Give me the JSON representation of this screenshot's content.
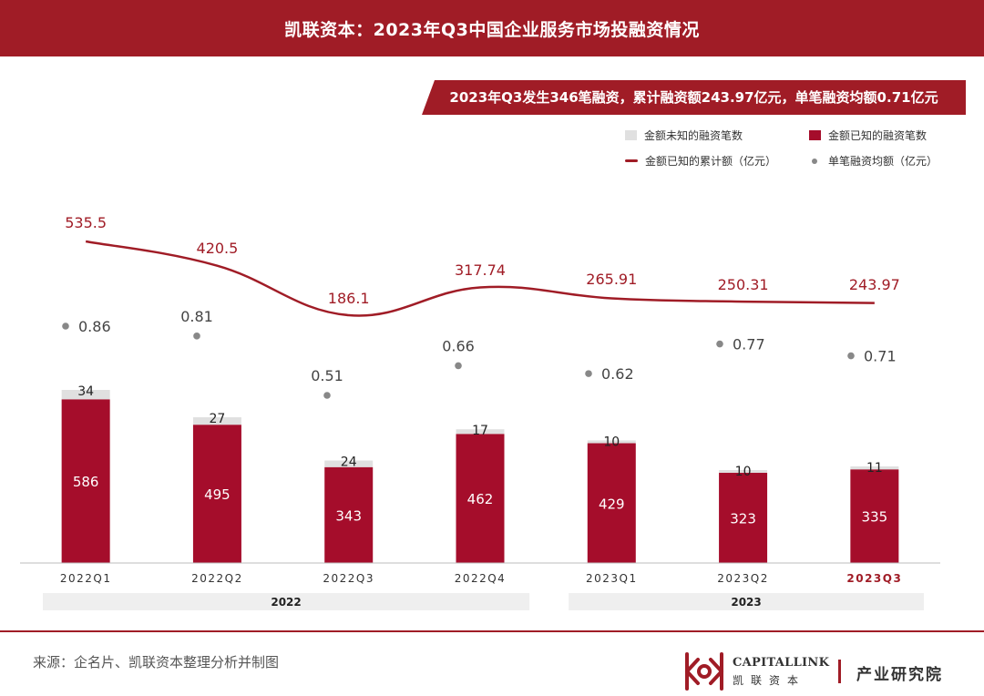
{
  "header": {
    "title": "凯联资本：2023年Q3中国企业服务市场投融资情况"
  },
  "summary": {
    "text": "2023年Q3发生346笔融资，累计融资额243.97亿元，单笔融资均额0.71亿元"
  },
  "legend": {
    "unknown_label": "金额未知的融资笔数",
    "known_label": "金额已知的融资笔数",
    "line_label": "金额已知的累计额（亿元）",
    "dot_label": "单笔融资均额（亿元）"
  },
  "colors": {
    "brand": "#a01c26",
    "bar_known": "#a50d2b",
    "bar_unknown": "#e0e0e0",
    "dot": "#888888",
    "line": "#a01c26"
  },
  "chart_data": {
    "type": "bar",
    "categories": [
      "2022Q1",
      "2022Q2",
      "2022Q3",
      "2022Q4",
      "2023Q1",
      "2023Q2",
      "2023Q3"
    ],
    "highlight_category": "2023Q3",
    "groups": [
      {
        "label": "2022",
        "from": 0,
        "to": 3
      },
      {
        "label": "2023",
        "from": 4,
        "to": 6
      }
    ],
    "series": [
      {
        "name": "金额已知的融资笔数",
        "type": "bar",
        "stacked": true,
        "values": [
          586,
          495,
          343,
          462,
          429,
          323,
          335
        ]
      },
      {
        "name": "金额未知的融资笔数",
        "type": "bar",
        "stacked": true,
        "values": [
          34,
          27,
          24,
          17,
          10,
          10,
          11
        ]
      },
      {
        "name": "金额已知的累计额（亿元）",
        "type": "line",
        "smooth": true,
        "values": [
          535.5,
          420.5,
          186.1,
          317.74,
          265.91,
          250.31,
          243.97
        ],
        "labels": [
          "535.5",
          "420.5",
          "186.1",
          "317.74",
          "265.91",
          "250.31",
          "243.97"
        ]
      },
      {
        "name": "单笔融资均额（亿元）",
        "type": "scatter",
        "values": [
          0.86,
          0.81,
          0.51,
          0.66,
          0.62,
          0.77,
          0.71
        ],
        "labels": [
          "0.86",
          "0.81",
          "0.51",
          "0.66",
          "0.62",
          "0.77",
          "0.71"
        ]
      }
    ],
    "ylim_bar": [
      0,
      640
    ],
    "ylim_line": [
      0,
      640
    ],
    "ylim_dot": [
      0.3,
      1.05
    ]
  },
  "footer": {
    "source": "来源：企名片、凯联资本整理分析并制图",
    "brand_en": "CAPITALLINK",
    "brand_cn": "凯联资本",
    "research": "产业研究院"
  }
}
